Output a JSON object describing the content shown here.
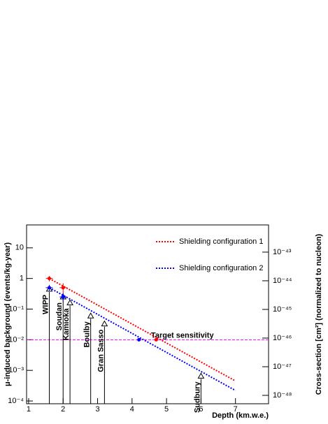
{
  "chart_data": {
    "type": "line",
    "xlabel": "Depth (km.w.e.)",
    "ylabel": "μ-induced background (events/kg-year)",
    "y2label": "Cross-section [cm²] (normalized to nucleon)",
    "xlim": [
      0.94,
      7.96
    ],
    "xticks": [
      1,
      2,
      3,
      4,
      5,
      6,
      7
    ],
    "ylim": [
      8.13e-05,
      56
    ],
    "ylog": true,
    "yticks": [
      {
        "value": 0.0001,
        "label": "10⁻⁴"
      },
      {
        "value": 0.001,
        "label": "10⁻³"
      },
      {
        "value": 0.01,
        "label": "10⁻²"
      },
      {
        "value": 0.1,
        "label": "10⁻¹"
      },
      1,
      10
    ],
    "y2lim": [
      5.1e-49,
      8.9e-43
    ],
    "y2log": true,
    "y2ticks": [
      {
        "value": 1e-48,
        "label": "10⁻⁴⁸"
      },
      {
        "value": 1e-47,
        "label": "10⁻⁴⁷"
      },
      {
        "value": 1e-46,
        "label": "10⁻⁴⁶"
      },
      {
        "value": 1e-45,
        "label": "10⁻⁴⁵"
      },
      {
        "value": 1e-44,
        "label": "10⁻⁴⁴"
      },
      {
        "value": 1e-43,
        "label": "10⁻⁴³"
      }
    ],
    "series": [
      {
        "name": "Shielding configuration 1",
        "color": "#ff0000",
        "x": [
          1.6,
          7
        ],
        "values": [
          1.0,
          0.00045
        ]
      },
      {
        "name": "Shielding configuration 2",
        "color": "#0000ff",
        "x": [
          1.6,
          7
        ],
        "values": [
          0.5,
          0.00022
        ]
      }
    ],
    "markers": [
      {
        "color": "#ff0000",
        "x": [
          1.6,
          2.0,
          4.7
        ],
        "values": [
          1.0,
          0.5,
          0.01
        ],
        "errors": [
          0.2,
          0.2,
          null
        ]
      },
      {
        "color": "#0000ff",
        "x": [
          1.6,
          2.0,
          4.2
        ],
        "values": [
          0.5,
          0.25,
          0.01
        ],
        "errors": [
          0.12,
          0.08,
          null
        ]
      }
    ],
    "sites": {
      "names": [
        "WIPP",
        "Soudan",
        "Kamioka",
        "Boulby",
        "Gran Sasso",
        "Sudbury"
      ],
      "x": [
        1.6,
        2.0,
        2.2,
        2.8,
        3.2,
        6.0
      ],
      "values": [
        0.45,
        0.25,
        0.16,
        0.06,
        0.033,
        0.00065
      ]
    },
    "reference": {
      "label": "Target sensitivity",
      "value": 0.01,
      "color": "#ff00ff"
    }
  }
}
